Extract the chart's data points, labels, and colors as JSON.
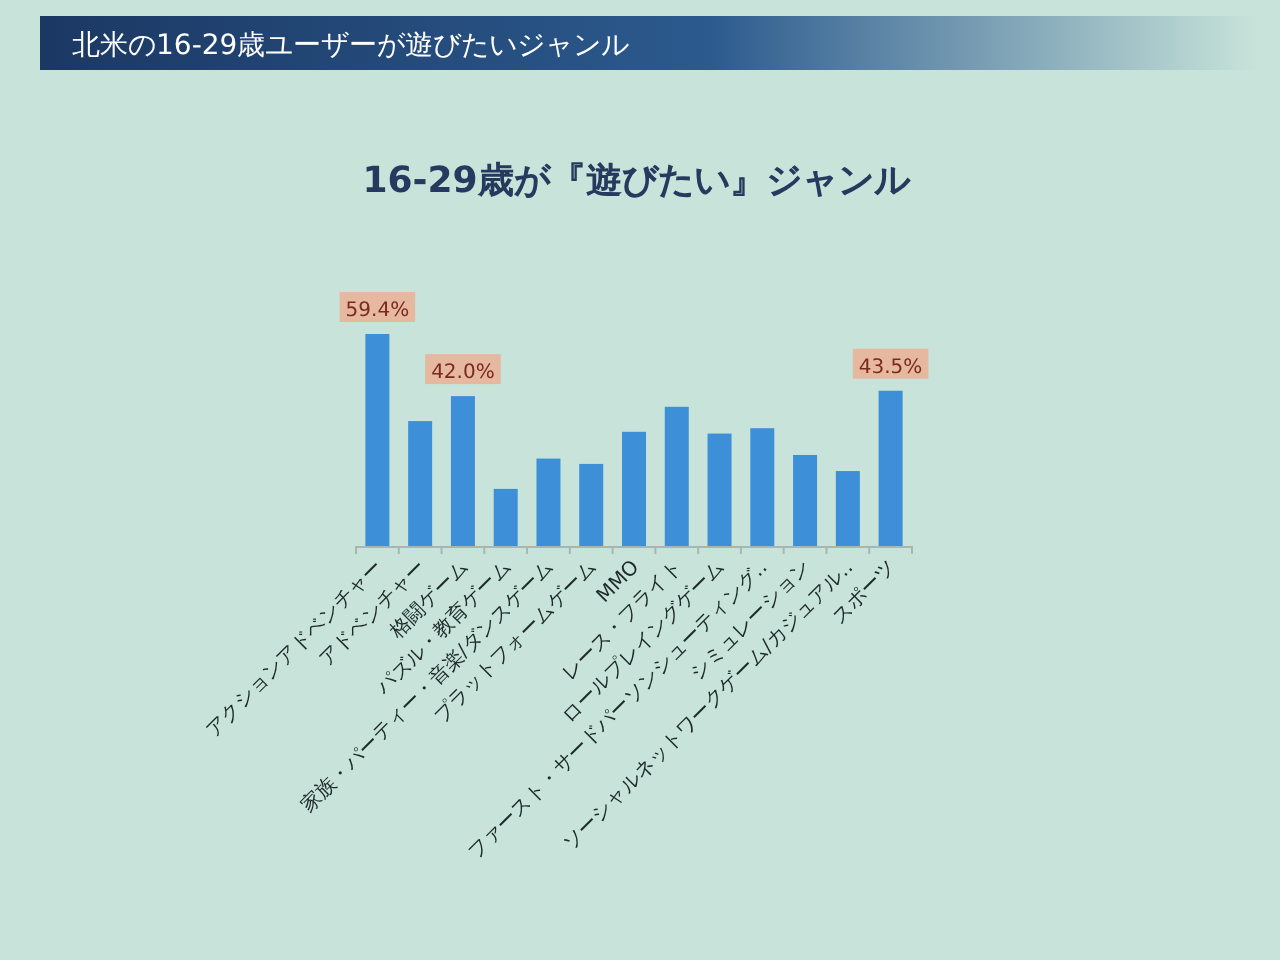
{
  "chart_data": {
    "type": "bar",
    "title": "北米の16-29歳ユーザーが遊びたいジャンル",
    "subtitle": "16-29歳が『遊びたい』ジャンル",
    "categories": [
      "アクションアドベンチャー",
      "アドベンチャー",
      "格闘ゲーム",
      "パズル・教育ゲーム",
      "家族・パーティー・音楽/ダンスゲーム",
      "プラットフォームゲーム",
      "MMO",
      "レース・フライト",
      "ロールプレイングゲーム",
      "ファースト・サードパーソンシューティング‥",
      "シミュレーション",
      "ソーシャルネットワークゲーム/カジュアル‥",
      "スポーツ"
    ],
    "values": [
      59.4,
      35,
      42.0,
      16,
      24.5,
      23,
      32,
      39,
      31.5,
      33,
      25.5,
      21,
      43.5
    ],
    "value_labels": [
      "59.4%",
      null,
      "42.0%",
      null,
      null,
      null,
      null,
      null,
      null,
      null,
      null,
      null,
      "43.5%"
    ],
    "color": "#3d8fd8"
  }
}
